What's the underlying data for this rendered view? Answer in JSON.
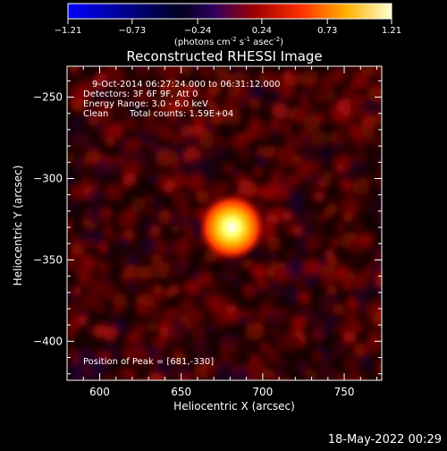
{
  "chart_data": {
    "type": "heatmap",
    "title": "Reconstructed RHESSI Image",
    "xlabel": "Heliocentric X (arcsec)",
    "ylabel": "Heliocentric Y (arcsec)",
    "xlim": [
      580,
      773
    ],
    "ylim": [
      -424,
      -231
    ],
    "x_ticks": [
      600,
      650,
      700,
      750
    ],
    "y_ticks": [
      -250,
      -300,
      -350,
      -400
    ],
    "colorbar": {
      "min": -1.21,
      "max": 1.21,
      "tick_values": [
        -1.21,
        -0.73,
        -0.24,
        0.24,
        0.73,
        1.21
      ],
      "tick_labels": [
        "-1.21",
        "-0.73",
        "-0.24",
        "0.24",
        "0.73",
        "1.21"
      ],
      "units_prefix": "(photons cm",
      "units_exp1": "-2",
      "units_mid": " s",
      "units_exp2": "-1",
      "units_mid2": " asec",
      "units_exp3": "-2",
      "units_suffix": ")",
      "colors": [
        "#0000ff",
        "#000000",
        "#8b0000",
        "#ff3300",
        "#ff9900",
        "#ffff66",
        "#ffffff"
      ]
    },
    "annotations": {
      "time_range": "9-Oct-2014 06:27:24.000 to 06:31:12.000",
      "detectors": "Detectors: 3F 6F 9F, Att 0",
      "energy_range": "Energy Range: 3.0 - 6.0 keV",
      "clean": "Clean",
      "total_counts": "Total counts: 1.59E+04",
      "peak_position": "Position of Peak = [681,-330]"
    },
    "peak": {
      "x": 681,
      "y": -330,
      "value": 1.21
    },
    "grid": false
  },
  "footer": {
    "timestamp": "18-May-2022 00:29"
  }
}
